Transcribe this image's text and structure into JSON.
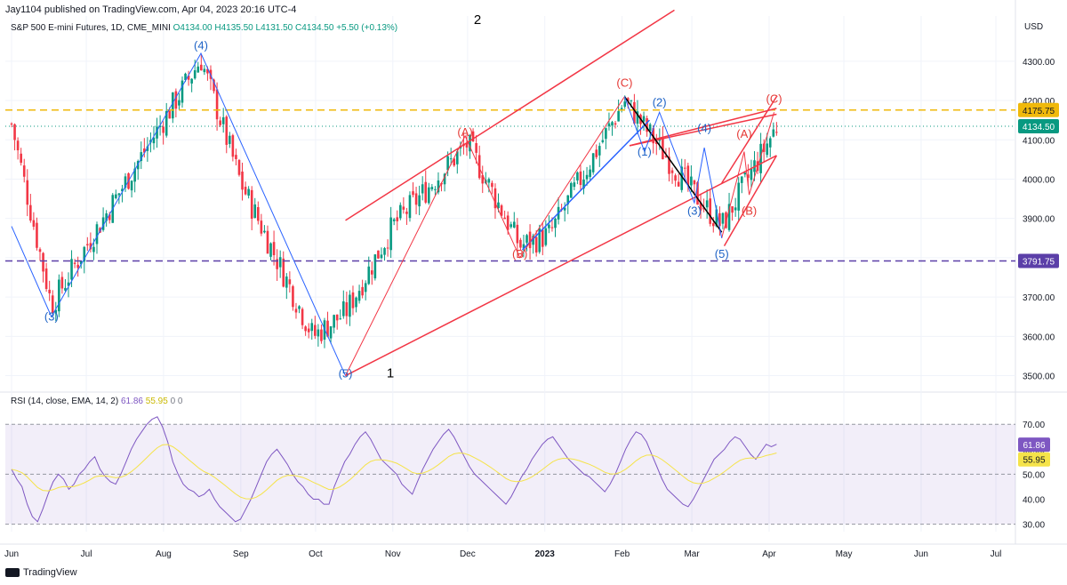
{
  "header": {
    "published": "Jay1104 published on TradingView.com, Apr 04, 2023 20:16 UTC-4",
    "symbol": "S&P 500 E-mini Futures, 1D, CME_MINI",
    "ohlc": {
      "open": "O4134.00",
      "high": "H4135.50",
      "low": "L4131.50",
      "close": "C4134.50",
      "change": "+5.50 (+0.13%)"
    },
    "currency": "USD"
  },
  "rsi_header": {
    "label": "RSI (14, close, EMA, 14, 2)",
    "rsi": "61.86",
    "ma": "55.95",
    "extra1": "0",
    "extra2": "0"
  },
  "footer": {
    "brand": "TradingView"
  },
  "colors": {
    "up": "#089981",
    "down": "#f23645",
    "wave": "#2962ff",
    "channel": "#f23645",
    "resistance": "#f0b90b",
    "support": "#5b3fa8",
    "rsi": "#7e57c2",
    "rsi_ma": "#f5e34a"
  },
  "chart_data": [
    {
      "type": "candlestick",
      "title": "S&P 500 E-mini Futures, 1D, CME_MINI",
      "currency": "USD",
      "x_ticks": [
        "Jun",
        "Jul",
        "Aug",
        "Sep",
        "Oct",
        "Nov",
        "Dec",
        "2023",
        "Feb",
        "Mar",
        "Apr",
        "May",
        "Jun",
        "Jul"
      ],
      "y_ticks": [
        3500,
        3600,
        3700,
        3800,
        3900,
        4000,
        4100,
        4200,
        4300
      ],
      "ylim": [
        3465,
        4415
      ],
      "horizontal_levels": [
        {
          "value": 4175.75,
          "label": "4175.75",
          "style": "dashed",
          "color": "#f0b90b"
        },
        {
          "value": 3791.75,
          "label": "3791.75",
          "style": "dashed",
          "color": "#5b3fa8"
        }
      ],
      "last_price": {
        "value": 4134.5,
        "label": "4134.50"
      },
      "wave_labels": [
        {
          "text": "(3)",
          "color": "blue",
          "date": "2022-06-17",
          "price": 3640
        },
        {
          "text": "(4)",
          "color": "blue",
          "date": "2022-08-16",
          "price": 4330
        },
        {
          "text": "(5)",
          "color": "blue",
          "date": "2022-10-13",
          "price": 3495
        },
        {
          "text": "1",
          "color": "black",
          "date": "2022-10-31",
          "price": 3495
        },
        {
          "text": "2",
          "color": "black",
          "date": "2022-12-05",
          "price": 4395
        },
        {
          "text": "(A)",
          "color": "red",
          "date": "2022-11-30",
          "price": 4110
        },
        {
          "text": "(B)",
          "color": "red",
          "date": "2022-12-22",
          "price": 3800
        },
        {
          "text": "(C)",
          "color": "red",
          "date": "2023-02-02",
          "price": 4235
        },
        {
          "text": "(1)",
          "color": "blue",
          "date": "2023-02-10",
          "price": 4060
        },
        {
          "text": "(2)",
          "color": "blue",
          "date": "2023-02-16",
          "price": 4185
        },
        {
          "text": "(3)",
          "color": "blue",
          "date": "2023-03-02",
          "price": 3910
        },
        {
          "text": "(4)",
          "color": "blue",
          "date": "2023-03-06",
          "price": 4120
        },
        {
          "text": "(5)",
          "color": "blue",
          "date": "2023-03-13",
          "price": 3800
        },
        {
          "text": "(A)",
          "color": "red",
          "date": "2023-03-22",
          "price": 4105
        },
        {
          "text": "(B)",
          "color": "red",
          "date": "2023-03-24",
          "price": 3910
        },
        {
          "text": "(C)",
          "color": "red",
          "date": "2023-04-03",
          "price": 4195
        }
      ],
      "trendlines": [
        {
          "color": "red",
          "from": [
            "2022-10-13",
            3500
          ],
          "to": [
            "2023-04-04",
            4060
          ]
        },
        {
          "color": "red",
          "from": [
            "2022-10-13",
            3895
          ],
          "to": [
            "2023-02-22",
            4430
          ]
        },
        {
          "color": "red",
          "from": [
            "2023-02-04",
            4085
          ],
          "to": [
            "2023-04-04",
            4165
          ]
        },
        {
          "color": "red",
          "from": [
            "2023-02-04",
            4085
          ],
          "to": [
            "2023-04-04",
            4180
          ]
        },
        {
          "color": "red",
          "from": [
            "2023-03-14",
            3830
          ],
          "to": [
            "2023-04-04",
            4060
          ]
        },
        {
          "color": "red",
          "from": [
            "2023-03-13",
            3990
          ],
          "to": [
            "2023-04-04",
            4210
          ]
        },
        {
          "color": "blue",
          "from": [
            "2022-12-23",
            3820
          ],
          "to": [
            "2023-02-12",
            4150
          ]
        },
        {
          "color": "black",
          "from": [
            "2023-02-02",
            4210
          ],
          "to": [
            "2023-03-13",
            3865
          ]
        }
      ],
      "ohlc_series_note": "daily candles, Jun 2022 – Apr 04 2023",
      "key_closes": [
        {
          "date": "2022-06-01",
          "close": 4140
        },
        {
          "date": "2022-06-17",
          "close": 3680
        },
        {
          "date": "2022-07-01",
          "close": 3830
        },
        {
          "date": "2022-08-16",
          "close": 4305
        },
        {
          "date": "2022-09-01",
          "close": 3990
        },
        {
          "date": "2022-09-30",
          "close": 3600
        },
        {
          "date": "2022-10-13",
          "close": 3660
        },
        {
          "date": "2022-11-01",
          "close": 3880
        },
        {
          "date": "2022-12-01",
          "close": 4090
        },
        {
          "date": "2022-12-22",
          "close": 3830
        },
        {
          "date": "2023-01-03",
          "close": 3860
        },
        {
          "date": "2023-02-02",
          "close": 4200
        },
        {
          "date": "2023-03-01",
          "close": 3970
        },
        {
          "date": "2023-03-13",
          "close": 3880
        },
        {
          "date": "2023-04-04",
          "close": 4134.5
        }
      ]
    },
    {
      "type": "line",
      "title": "RSI (14, close, EMA, 14, 2)",
      "y_ticks": [
        30,
        40,
        50,
        60,
        70
      ],
      "ylim": [
        27,
        74
      ],
      "bands": {
        "upper": 70,
        "middle": 50,
        "lower": 30
      },
      "series": [
        {
          "name": "RSI",
          "last": 61.86,
          "values": [
            52,
            48,
            45,
            38,
            33,
            31,
            36,
            42,
            47,
            50,
            48,
            44,
            46,
            50,
            52,
            55,
            57,
            52,
            49,
            47,
            46,
            50,
            55,
            60,
            64,
            67,
            70,
            72,
            73,
            69,
            63,
            55,
            50,
            46,
            44,
            43,
            41,
            42,
            44,
            40,
            37,
            35,
            33,
            31,
            32,
            36,
            40,
            45,
            50,
            55,
            58,
            60,
            57,
            54,
            50,
            47,
            45,
            42,
            40,
            40,
            38,
            38,
            45,
            50,
            55,
            58,
            62,
            65,
            67,
            64,
            60,
            56,
            54,
            52,
            50,
            46,
            44,
            42,
            47,
            52,
            56,
            60,
            63,
            66,
            68,
            65,
            61,
            57,
            53,
            50,
            48,
            46,
            44,
            42,
            40,
            38,
            41,
            45,
            49,
            52,
            56,
            59,
            62,
            64,
            65,
            62,
            59,
            56,
            54,
            52,
            50,
            49,
            47,
            45,
            43,
            46,
            50,
            55,
            60,
            64,
            67,
            66,
            63,
            58,
            53,
            48,
            44,
            42,
            40,
            38,
            37,
            40,
            44,
            48,
            52,
            56,
            58,
            60,
            63,
            65,
            64,
            61,
            58,
            56,
            59,
            62,
            61,
            62
          ]
        },
        {
          "name": "RSI MA",
          "last": 55.95
        }
      ]
    }
  ]
}
